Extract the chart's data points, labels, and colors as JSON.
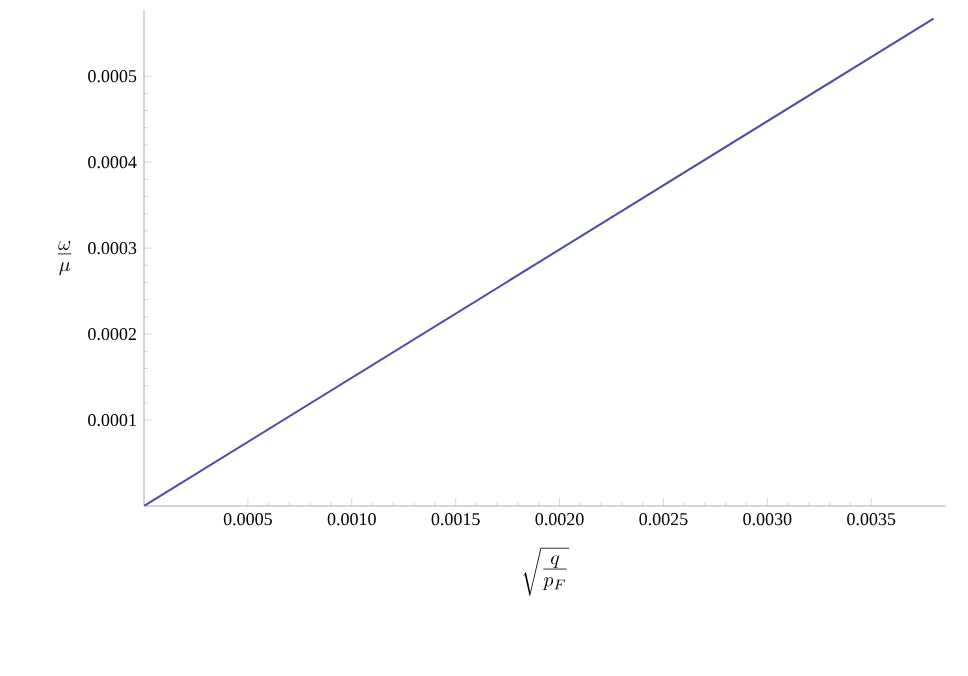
{
  "chart_data": {
    "type": "line",
    "xlabel": "\\sqrt{\\frac{q}{p_F}}",
    "ylabel": "\\frac{\\omega}{\\mu}",
    "x": [
      0,
      0.0038
    ],
    "series": [
      {
        "color": "#4b4ba8",
        "values": [
          0,
          0.000567
        ]
      }
    ],
    "xlim": [
      0,
      0.00386
    ],
    "ylim": [
      0,
      0.000577
    ],
    "xticks": [
      0.0005,
      {
        "value": 0.001,
        "label": "0.0010"
      },
      0.0015,
      {
        "value": 0.002,
        "label": "0.0020"
      },
      0.0025,
      {
        "value": 0.003,
        "label": "0.0030"
      },
      0.0035
    ],
    "yticks": [
      0.0001,
      0.0002,
      0.0003,
      0.0004,
      0.0005
    ]
  }
}
